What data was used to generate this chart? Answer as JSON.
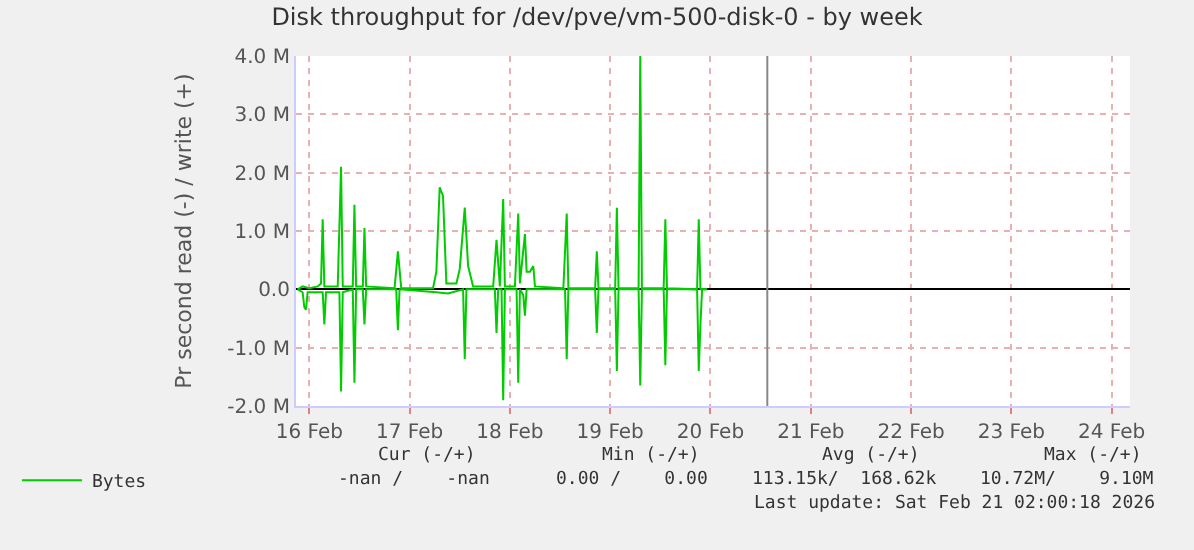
{
  "chart_data": {
    "type": "line",
    "title": "Disk throughput for /dev/pve/vm-500-disk-0 - by week",
    "ylabel": "Pr second read (-) / write (+)",
    "xlim": [
      "2026-02-15T20:48",
      "2026-02-24T04:24"
    ],
    "xticks": [
      {
        "value": "2026-02-16",
        "label": "16 Feb"
      },
      {
        "value": "2026-02-17",
        "label": "17 Feb"
      },
      {
        "value": "2026-02-18",
        "label": "18 Feb"
      },
      {
        "value": "2026-02-19",
        "label": "19 Feb"
      },
      {
        "value": "2026-02-20",
        "label": "20 Feb"
      },
      {
        "value": "2026-02-21",
        "label": "21 Feb"
      },
      {
        "value": "2026-02-22",
        "label": "22 Feb"
      },
      {
        "value": "2026-02-23",
        "label": "23 Feb"
      },
      {
        "value": "2026-02-24",
        "label": "24 Feb"
      }
    ],
    "ylim": [
      -2000000,
      4000000
    ],
    "yticks": [
      {
        "value": -2000000,
        "label": "-2.0 M"
      },
      {
        "value": -1000000,
        "label": "-1.0 M"
      },
      {
        "value": 0,
        "label": "0.0"
      },
      {
        "value": 1000000,
        "label": "1.0 M"
      },
      {
        "value": 2000000,
        "label": "2.0 M"
      },
      {
        "value": 3000000,
        "label": "3.0 M"
      },
      {
        "value": 4000000,
        "label": "4.0 M"
      }
    ],
    "grid": true,
    "legend": "bottom left",
    "series": [
      {
        "name": "Bytes",
        "color": "#00cc00",
        "x": [
          "2026-02-15T21:12",
          "2026-02-15T22:24",
          "2026-02-16T00:00",
          "2026-02-16T02:00",
          "2026-02-16T02:48",
          "2026-02-16T03:12",
          "2026-02-16T03:36",
          "2026-02-16T06:48",
          "2026-02-16T07:36",
          "2026-02-16T08:00",
          "2026-02-16T10:24",
          "2026-02-16T10:48",
          "2026-02-16T11:12",
          "2026-02-16T12:48",
          "2026-02-16T13:12",
          "2026-02-16T13:36",
          "2026-02-16T20:24",
          "2026-02-16T21:12",
          "2026-02-16T22:00",
          "2026-02-17T05:36",
          "2026-02-17T06:24",
          "2026-02-17T07:12",
          "2026-02-17T08:00",
          "2026-02-17T08:48",
          "2026-02-17T11:12",
          "2026-02-17T12:00",
          "2026-02-17T13:12",
          "2026-02-17T14:00",
          "2026-02-17T15:12",
          "2026-02-17T20:00",
          "2026-02-17T20:48",
          "2026-02-17T21:36",
          "2026-02-17T22:24",
          "2026-02-17T22:48",
          "2026-02-18T01:12",
          "2026-02-18T02:00",
          "2026-02-18T02:24",
          "2026-02-18T03:36",
          "2026-02-18T04:00",
          "2026-02-18T04:48",
          "2026-02-18T05:36",
          "2026-02-18T06:00",
          "2026-02-18T12:48",
          "2026-02-18T13:36",
          "2026-02-18T14:00",
          "2026-02-18T20:24",
          "2026-02-18T20:48",
          "2026-02-18T21:12",
          "2026-02-19T01:12",
          "2026-02-19T01:36",
          "2026-02-19T02:00",
          "2026-02-19T06:48",
          "2026-02-19T07:12",
          "2026-02-19T07:36",
          "2026-02-19T12:48",
          "2026-02-19T13:12",
          "2026-02-19T13:36",
          "2026-02-19T20:48",
          "2026-02-19T21:12",
          "2026-02-19T21:36",
          "2026-02-19T23:12"
        ],
        "values": [
          0,
          50000,
          20000,
          50000,
          100000,
          1200000,
          50000,
          50000,
          2100000,
          50000,
          50000,
          1450000,
          50000,
          50000,
          1050000,
          50000,
          20000,
          650000,
          20000,
          20000,
          300000,
          1750000,
          1600000,
          100000,
          100000,
          350000,
          1400000,
          400000,
          50000,
          50000,
          850000,
          50000,
          1550000,
          50000,
          50000,
          1300000,
          100000,
          950000,
          300000,
          300000,
          400000,
          50000,
          20000,
          1300000,
          20000,
          20000,
          650000,
          20000,
          20000,
          1400000,
          20000,
          20000,
          4000000,
          20000,
          20000,
          1200000,
          20000,
          0,
          1200000,
          0,
          0
        ]
      },
      {
        "color": "#00cc00",
        "x": [
          "2026-02-15T21:12",
          "2026-02-15T22:24",
          "2026-02-15T22:48",
          "2026-02-15T23:12",
          "2026-02-15T23:36",
          "2026-02-16T03:12",
          "2026-02-16T03:36",
          "2026-02-16T04:00",
          "2026-02-16T07:12",
          "2026-02-16T07:36",
          "2026-02-16T08:00",
          "2026-02-16T10:24",
          "2026-02-16T10:48",
          "2026-02-16T11:12",
          "2026-02-16T12:48",
          "2026-02-16T13:12",
          "2026-02-16T13:36",
          "2026-02-16T20:48",
          "2026-02-16T21:12",
          "2026-02-16T21:36",
          "2026-02-17T06:24",
          "2026-02-17T09:12",
          "2026-02-17T12:48",
          "2026-02-17T13:12",
          "2026-02-17T13:36",
          "2026-02-17T20:24",
          "2026-02-17T20:48",
          "2026-02-17T21:12",
          "2026-02-17T22:00",
          "2026-02-17T22:24",
          "2026-02-17T22:48",
          "2026-02-18T01:36",
          "2026-02-18T02:00",
          "2026-02-18T02:24",
          "2026-02-18T03:12",
          "2026-02-18T03:36",
          "2026-02-18T04:00",
          "2026-02-18T13:12",
          "2026-02-18T13:36",
          "2026-02-18T14:00",
          "2026-02-18T20:24",
          "2026-02-18T20:48",
          "2026-02-18T21:12",
          "2026-02-19T01:12",
          "2026-02-19T01:36",
          "2026-02-19T02:00",
          "2026-02-19T06:48",
          "2026-02-19T07:12",
          "2026-02-19T07:36",
          "2026-02-19T12:48",
          "2026-02-19T13:12",
          "2026-02-19T13:36",
          "2026-02-19T20:48",
          "2026-02-19T21:12",
          "2026-02-19T21:36",
          "2026-02-19T22:00",
          "2026-02-19T23:12"
        ],
        "values": [
          0,
          -50000,
          -300000,
          -350000,
          -50000,
          -50000,
          -600000,
          -50000,
          -50000,
          -1750000,
          -50000,
          0,
          -1600000,
          0,
          0,
          -600000,
          0,
          0,
          -700000,
          0,
          -50000,
          -70000,
          0,
          -1200000,
          0,
          0,
          -750000,
          0,
          0,
          -1900000,
          0,
          0,
          -1600000,
          0,
          -100000,
          -450000,
          0,
          0,
          -1200000,
          0,
          0,
          -750000,
          0,
          0,
          -1400000,
          0,
          0,
          -1650000,
          0,
          0,
          -1300000,
          0,
          0,
          -1400000,
          -600000,
          0,
          0
        ]
      }
    ],
    "ref_lines": [
      {
        "axis": "x",
        "value": "2026-02-20T13:36",
        "color": "#888888"
      }
    ],
    "annotations": [
      "Cur (-/+)",
      "Min (-/+)",
      "Avg (-/+)",
      "Max (-/+)",
      "-nan /    -nan",
      "0.00 /    0.00",
      "113.15k/  168.62k",
      "10.72M/    9.10M",
      "Last update: Sat Feb 21 02:00:18 2026"
    ]
  }
}
